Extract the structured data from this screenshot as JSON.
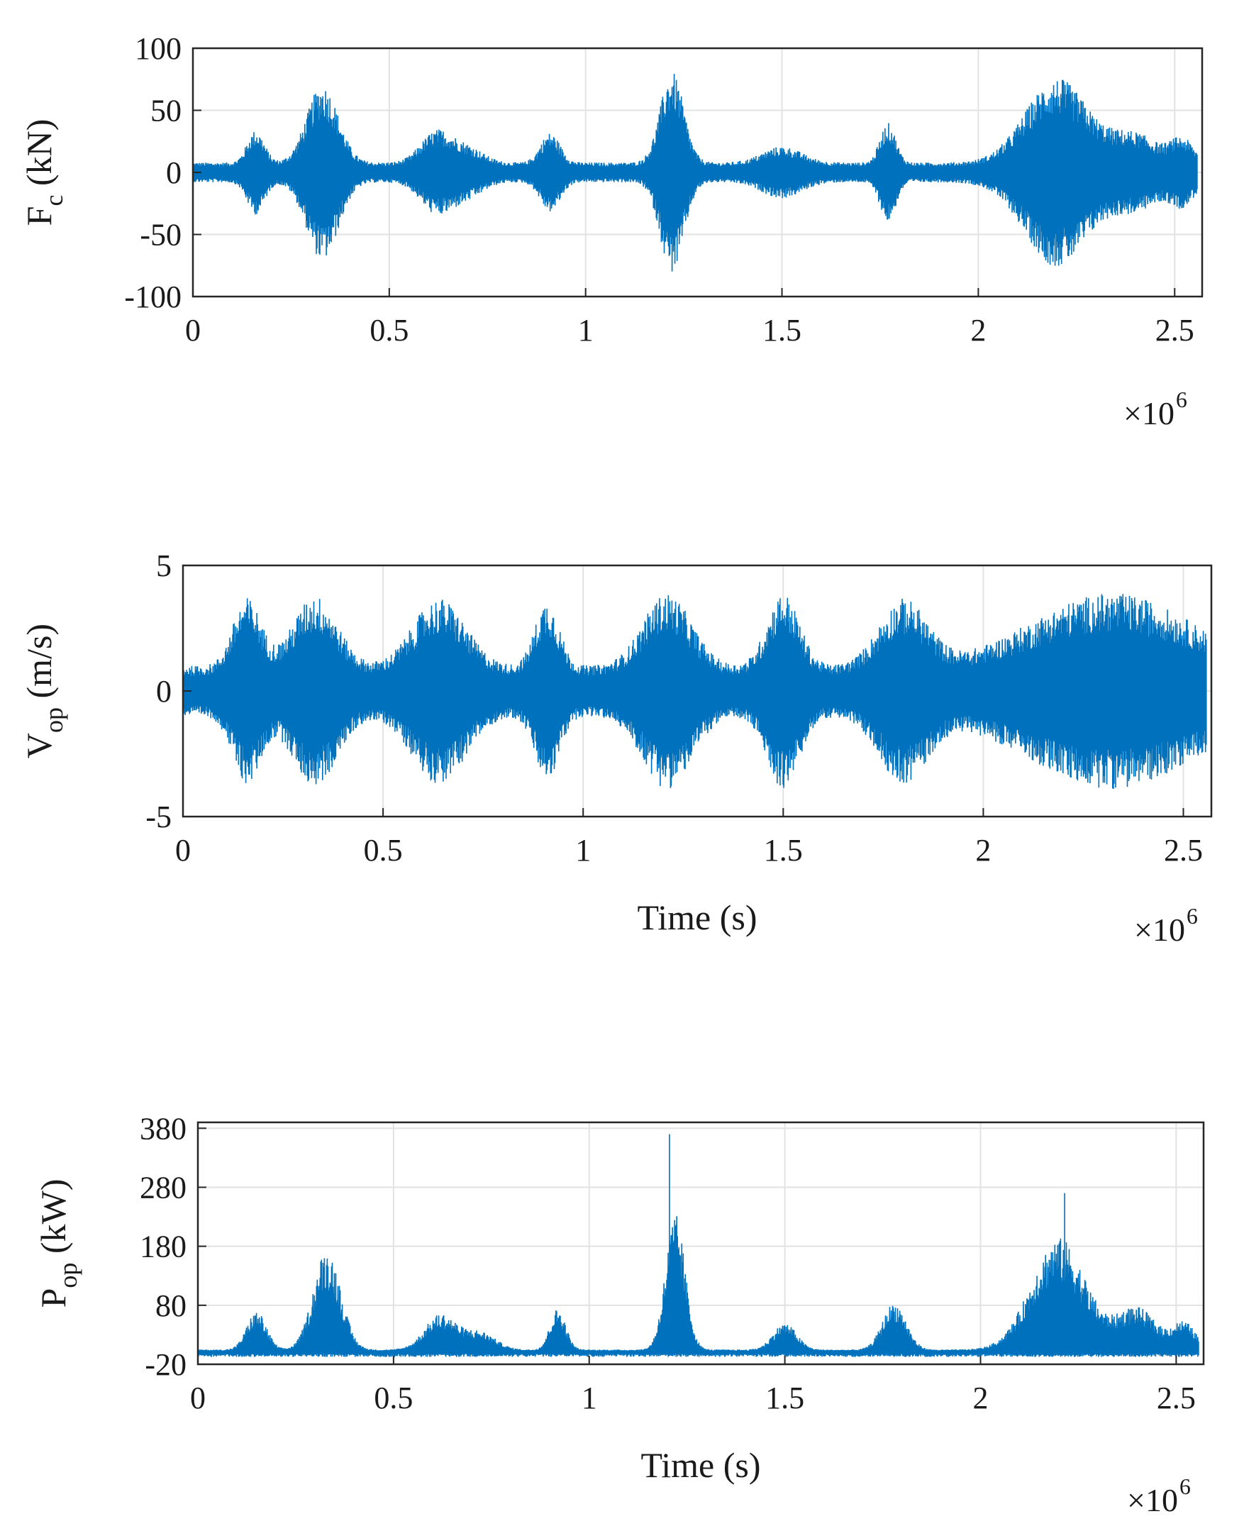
{
  "figure": {
    "style": {
      "series_color": "#0072BD",
      "grid_color": "#e2e2e2",
      "axis_color": "#262626",
      "background": "#ffffff"
    }
  },
  "chart_data": [
    {
      "type": "line",
      "panel": "force",
      "ylabel_main": "F",
      "ylabel_sub": "c",
      "ylabel_unit": " (kN)",
      "xlabel": "",
      "exponent_label": "×10",
      "exponent_power": "6",
      "xlim": [
        0,
        2.57
      ],
      "ylim": [
        -100,
        100
      ],
      "x_ticks": [
        0,
        0.5,
        1,
        1.5,
        2,
        2.5
      ],
      "x_tick_labels": [
        "0",
        "0.5",
        "1",
        "1.5",
        "2",
        "2.5"
      ],
      "y_ticks": [
        -100,
        -50,
        0,
        50,
        100
      ],
      "y_tick_labels": [
        "-100",
        "-50",
        "0",
        "50",
        "100"
      ],
      "grid": true,
      "signal": "symmetric",
      "baseline": 0,
      "base_amplitude": 8,
      "bursts": [
        {
          "x": 0.16,
          "w": 0.022,
          "amp": 26
        },
        {
          "x": 0.33,
          "w": 0.04,
          "amp": 63
        },
        {
          "x": 0.62,
          "w": 0.04,
          "amp": 25
        },
        {
          "x": 0.7,
          "w": 0.04,
          "amp": 12
        },
        {
          "x": 0.91,
          "w": 0.025,
          "amp": 24
        },
        {
          "x": 1.22,
          "w": 0.03,
          "amp": 73
        },
        {
          "x": 1.5,
          "w": 0.05,
          "amp": 13
        },
        {
          "x": 1.77,
          "w": 0.02,
          "amp": 32
        },
        {
          "x": 2.2,
          "w": 0.08,
          "amp": 68
        },
        {
          "x": 2.4,
          "w": 0.06,
          "amp": 22
        },
        {
          "x": 2.52,
          "w": 0.03,
          "amp": 18
        }
      ]
    },
    {
      "type": "line",
      "panel": "velocity",
      "ylabel_main": "V",
      "ylabel_sub": "op",
      "ylabel_unit": " (m/s)",
      "xlabel": "Time (s)",
      "exponent_label": "×10",
      "exponent_power": "6",
      "xlim": [
        0,
        2.57
      ],
      "ylim": [
        -5,
        5
      ],
      "x_ticks": [
        0,
        0.5,
        1,
        1.5,
        2,
        2.5
      ],
      "x_tick_labels": [
        "0",
        "0.5",
        "1",
        "1.5",
        "2",
        "2.5"
      ],
      "y_ticks": [
        -5,
        0,
        5
      ],
      "y_tick_labels": [
        "-5",
        "0",
        "5"
      ],
      "grid": true,
      "signal": "symmetric",
      "baseline": 0,
      "base_amplitude": 1.0,
      "bursts": [
        {
          "x": 0.16,
          "w": 0.035,
          "amp": 2.7
        },
        {
          "x": 0.33,
          "w": 0.055,
          "amp": 2.8
        },
        {
          "x": 0.64,
          "w": 0.065,
          "amp": 2.7
        },
        {
          "x": 0.91,
          "w": 0.03,
          "amp": 2.6
        },
        {
          "x": 1.21,
          "w": 0.06,
          "amp": 2.9
        },
        {
          "x": 1.5,
          "w": 0.04,
          "amp": 2.9
        },
        {
          "x": 1.8,
          "w": 0.06,
          "amp": 2.6
        },
        {
          "x": 2.32,
          "w": 0.2,
          "amp": 2.9
        }
      ]
    },
    {
      "type": "line",
      "panel": "power",
      "ylabel_main": "P",
      "ylabel_sub": "op",
      "ylabel_unit": " (kW)",
      "xlabel": "Time (s)",
      "exponent_label": "×10",
      "exponent_power": "6",
      "xlim": [
        0,
        2.57
      ],
      "ylim": [
        -20,
        390
      ],
      "x_ticks": [
        0,
        0.5,
        1,
        1.5,
        2,
        2.5
      ],
      "x_tick_labels": [
        "0",
        "0.5",
        "1",
        "1.5",
        "2",
        "2.5"
      ],
      "y_ticks": [
        -20,
        80,
        180,
        280,
        380
      ],
      "y_tick_labels": [
        "-20",
        "80",
        "180",
        "280",
        "380"
      ],
      "grid": true,
      "signal": "positive",
      "baseline": 0,
      "base_amplitude": 5,
      "bursts": [
        {
          "x": 0.15,
          "w": 0.025,
          "amp": 65
        },
        {
          "x": 0.33,
          "w": 0.035,
          "amp": 170
        },
        {
          "x": 0.62,
          "w": 0.04,
          "amp": 60
        },
        {
          "x": 0.72,
          "w": 0.04,
          "amp": 30
        },
        {
          "x": 0.92,
          "w": 0.02,
          "amp": 70
        },
        {
          "x": 1.22,
          "w": 0.025,
          "amp": 230
        },
        {
          "x": 1.5,
          "w": 0.03,
          "amp": 45
        },
        {
          "x": 1.78,
          "w": 0.03,
          "amp": 80
        },
        {
          "x": 2.2,
          "w": 0.07,
          "amp": 190
        },
        {
          "x": 2.4,
          "w": 0.05,
          "amp": 70
        },
        {
          "x": 2.52,
          "w": 0.03,
          "amp": 45
        }
      ],
      "spikes": [
        {
          "x": 1.205,
          "y": 370
        },
        {
          "x": 2.215,
          "y": 270
        }
      ]
    }
  ]
}
